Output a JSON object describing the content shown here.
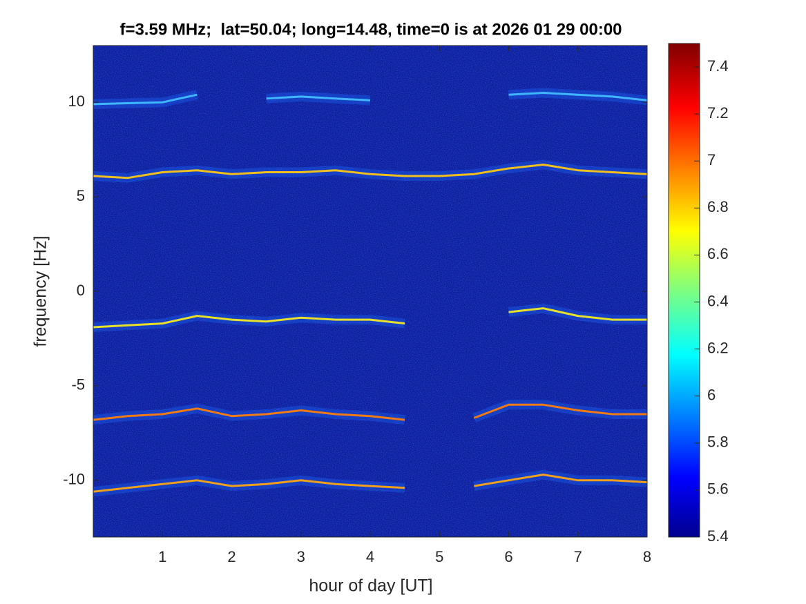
{
  "chart_data": {
    "type": "spectrogram",
    "title": "f=3.59 MHz;  lat=50.04; long=14.48, time=0 is at 2026 01 29 00:00",
    "x_label": "hour of day [UT]",
    "y_label": "frequency [Hz]",
    "xlim": [
      0,
      8
    ],
    "xticks": [
      1,
      2,
      3,
      4,
      5,
      6,
      7,
      8
    ],
    "ylim": [
      -13,
      13
    ],
    "yticks": [
      -10,
      -5,
      0,
      5,
      10
    ],
    "clim": [
      5.4,
      7.5
    ],
    "cticks": [
      5.4,
      5.6,
      5.8,
      6,
      6.2,
      6.4,
      6.6,
      6.8,
      7,
      7.2,
      7.4
    ],
    "colormap": "jet",
    "background": "#0b1a9c",
    "x": [
      0,
      0.5,
      1,
      1.5,
      2,
      2.5,
      3,
      3.5,
      4,
      4.5,
      5,
      5.5,
      6,
      6.5,
      7,
      7.5,
      8
    ],
    "series": [
      {
        "color": "#3fb6ff",
        "values": [
          9.9,
          9.95,
          10.0,
          10.4,
          null,
          10.2,
          10.3,
          10.2,
          10.1,
          null,
          null,
          null,
          10.4,
          10.5,
          10.4,
          10.3,
          10.1
        ]
      },
      {
        "color": "#f2c01c",
        "values": [
          6.1,
          6.0,
          6.3,
          6.4,
          6.2,
          6.3,
          6.3,
          6.4,
          6.2,
          6.1,
          6.1,
          6.2,
          6.5,
          6.7,
          6.4,
          6.3,
          6.2
        ]
      },
      {
        "color": "#e8e12a",
        "values": [
          -1.9,
          -1.8,
          -1.7,
          -1.3,
          -1.5,
          -1.6,
          -1.4,
          -1.5,
          -1.5,
          -1.7,
          null,
          null,
          -1.1,
          -0.9,
          -1.3,
          -1.5,
          -1.5
        ]
      },
      {
        "color": "#f07a14",
        "values": [
          -6.8,
          -6.6,
          -6.5,
          -6.2,
          -6.6,
          -6.5,
          -6.3,
          -6.5,
          -6.6,
          -6.8,
          null,
          -6.7,
          -6.0,
          -6.0,
          -6.3,
          -6.5,
          -6.5
        ]
      },
      {
        "color": "#f0a01a",
        "values": [
          -10.6,
          -10.4,
          -10.2,
          -10.0,
          -10.3,
          -10.2,
          -10.0,
          -10.2,
          -10.3,
          -10.4,
          null,
          -10.3,
          -10.0,
          -9.7,
          -10.0,
          -10.0,
          -10.1
        ]
      }
    ]
  }
}
